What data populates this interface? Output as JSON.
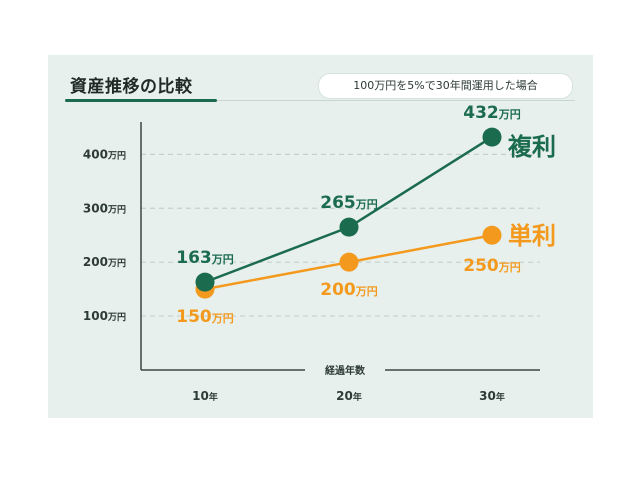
{
  "header": {
    "title": "資産推移の比較",
    "subtitle": "100万円を5%で30年間運用した場合"
  },
  "colors": {
    "compound": "#1b6b4f",
    "simple": "#f39a1e",
    "grid": "#c3d0cb",
    "panel": "#e8f0ed"
  },
  "chart_data": {
    "type": "line",
    "xlabel": "経過年数",
    "ylabel": "",
    "categories": [
      "10年",
      "20年",
      "30年"
    ],
    "y_ticks": [
      "100万円",
      "200万円",
      "300万円",
      "400万円"
    ],
    "y_tick_values": [
      100,
      200,
      300,
      400
    ],
    "ylim": [
      0,
      460
    ],
    "grid": true,
    "series": [
      {
        "name": "複利",
        "values": [
          163,
          265,
          432
        ],
        "labels": [
          "163万円",
          "265万円",
          "432万円"
        ]
      },
      {
        "name": "単利",
        "values": [
          150,
          200,
          250
        ],
        "labels": [
          "150万円",
          "200万円",
          "250万円"
        ]
      }
    ]
  }
}
